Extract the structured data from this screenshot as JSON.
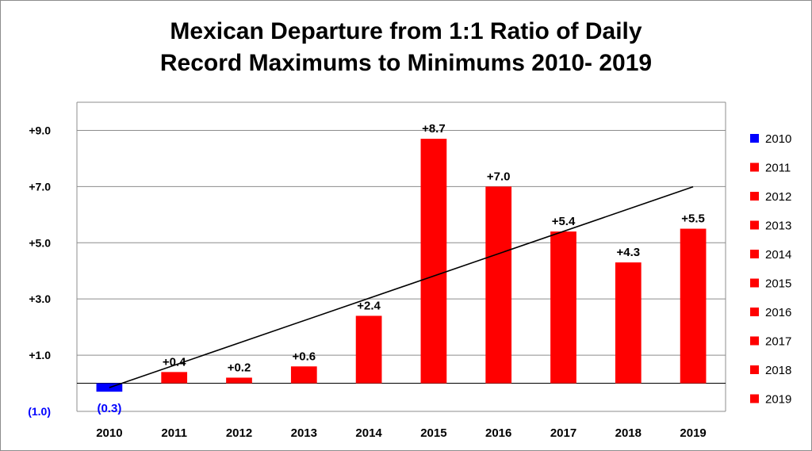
{
  "chart_data": {
    "type": "bar",
    "title": [
      "Mexican Departure from 1:1 Ratio of Daily",
      "Record Maximums to Minimums 2010- 2019"
    ],
    "categories": [
      "2010",
      "2011",
      "2012",
      "2013",
      "2014",
      "2015",
      "2016",
      "2017",
      "2018",
      "2019"
    ],
    "values": [
      -0.3,
      0.4,
      0.2,
      0.6,
      2.4,
      8.7,
      7.0,
      5.4,
      4.3,
      5.5
    ],
    "data_labels": [
      "(0.3)",
      "+0.4",
      "+0.2",
      "+0.6",
      "+2.4",
      "+8.7",
      "+7.0",
      "+5.4",
      "+4.3",
      "+5.5"
    ],
    "colors": [
      "#0000ff",
      "#ff0000",
      "#ff0000",
      "#ff0000",
      "#ff0000",
      "#ff0000",
      "#ff0000",
      "#ff0000",
      "#ff0000",
      "#ff0000"
    ],
    "negative_color": "#0000ff",
    "positive_color": "#ff0000",
    "label_negative_color": "#0000ff",
    "label_positive_color": "#000000",
    "y_ticks": [
      -1.0,
      1.0,
      3.0,
      5.0,
      7.0,
      9.0
    ],
    "y_tick_labels": [
      "(1.0)",
      "+1.0",
      "+3.0",
      "+5.0",
      "+7.0",
      "+9.0"
    ],
    "ylim": [
      -1.0,
      10.0
    ],
    "grid": true,
    "legend": {
      "position": "right",
      "entries": [
        "2010",
        "2011",
        "2012",
        "2013",
        "2014",
        "2015",
        "2016",
        "2017",
        "2018",
        "2019"
      ]
    },
    "trendline": {
      "type": "linear",
      "color": "#000000"
    }
  }
}
